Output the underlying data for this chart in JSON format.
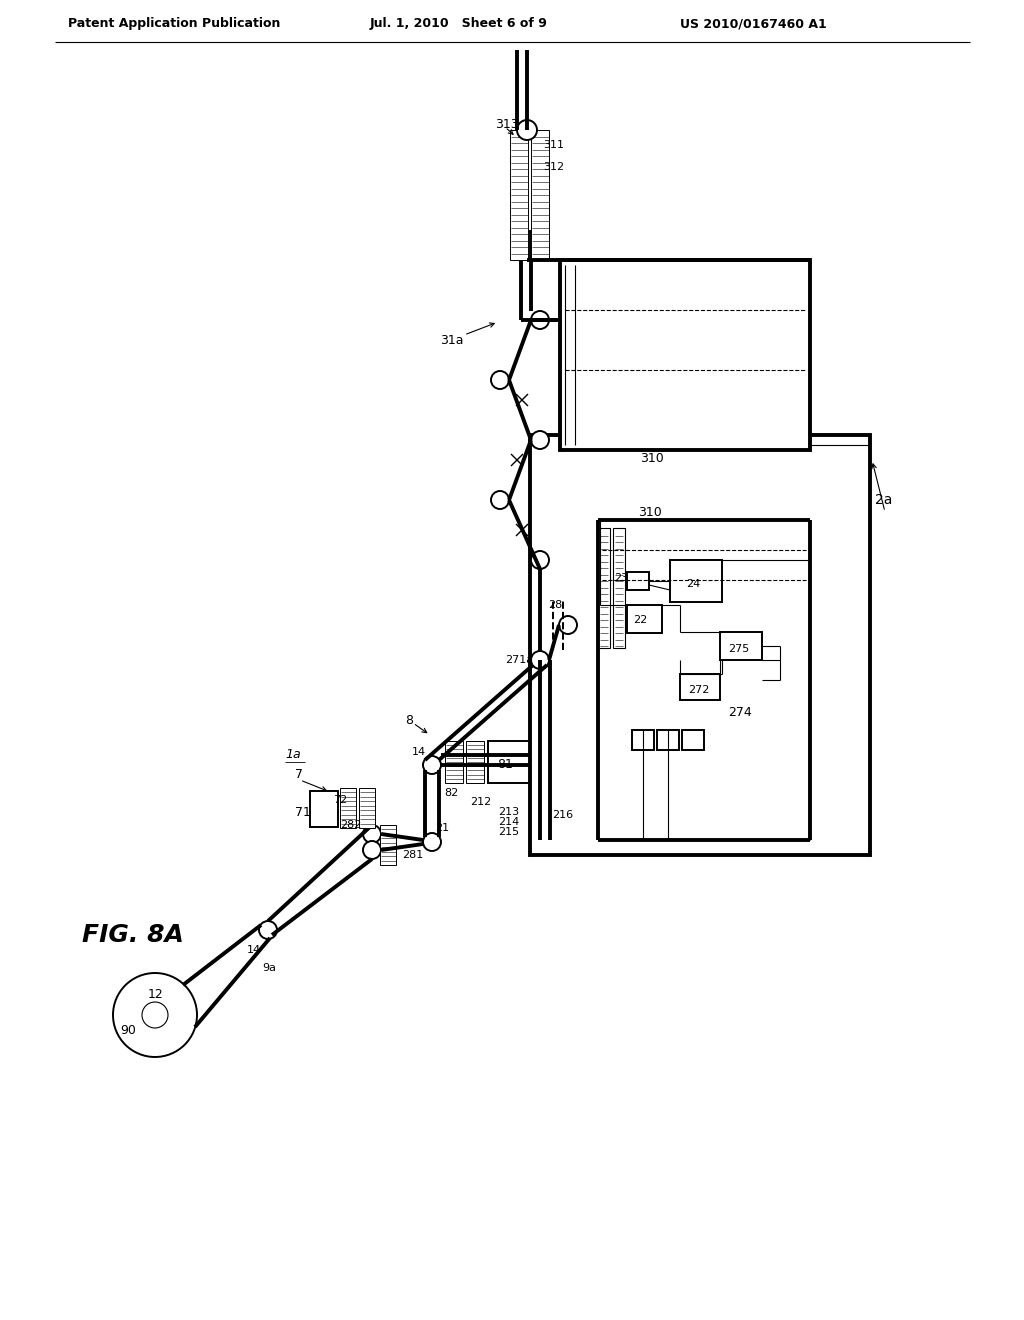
{
  "bg_color": "#ffffff",
  "header_left": "Patent Application Publication",
  "header_mid": "Jul. 1, 2010   Sheet 6 of 9",
  "header_right": "US 2010/0167460 A1",
  "fig_label": "FIG. 8A"
}
